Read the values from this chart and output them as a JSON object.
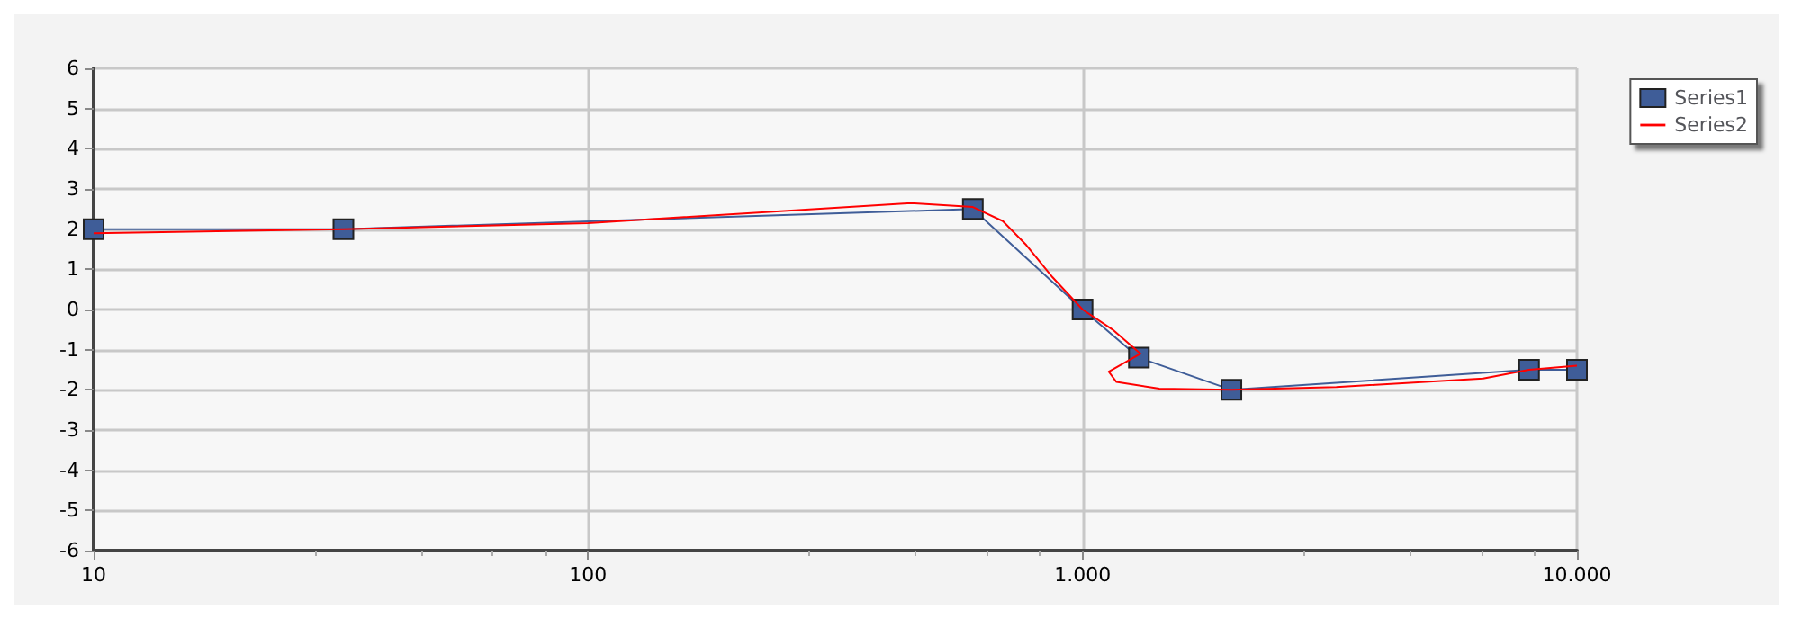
{
  "chart_data": {
    "type": "line",
    "log": "x",
    "xlim": [
      10,
      10000
    ],
    "ylim": [
      -6,
      6
    ],
    "xticks": [
      10,
      100,
      {
        "value": 1000,
        "label": "1.000"
      },
      {
        "value": 10000,
        "label": "10.000"
      }
    ],
    "yticks": [
      -6,
      -5,
      -4,
      -3,
      -2,
      -1,
      0,
      1,
      2,
      3,
      4,
      5,
      6
    ],
    "grid": true,
    "legend": "top right",
    "series": [
      {
        "name": "Series1",
        "color": "#3f5d98",
        "marker": "square",
        "x": [
          10,
          32,
          600,
          1000,
          1300,
          2000,
          8000,
          10000
        ],
        "values": [
          2,
          2,
          2.5,
          0,
          -1.2,
          -2,
          -1.5,
          -1.5
        ]
      },
      {
        "name": "Series2",
        "color": "#ff0000",
        "marker": "none",
        "x": [
          10,
          32,
          100,
          450,
          600,
          690,
          770,
          870,
          1000,
          1150,
          1310,
          1130,
          1170,
          1430,
          2000,
          3260,
          6460,
          8000,
          10000
        ],
        "values": [
          1.9,
          2,
          2.15,
          2.65,
          2.55,
          2.2,
          1.6,
          0.8,
          0,
          -0.5,
          -1.1,
          -1.55,
          -1.8,
          -1.97,
          -2,
          -1.93,
          -1.72,
          -1.5,
          -1.4
        ]
      }
    ]
  }
}
